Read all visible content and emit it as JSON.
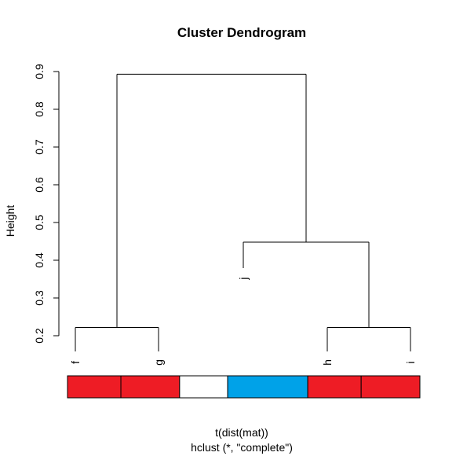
{
  "chart_data": {
    "type": "dendrogram",
    "title": "Cluster Dendrogram",
    "xlabel": "t(dist(mat))",
    "sublabel": "hclust (*, \"complete\")",
    "ylabel": "Height",
    "ylim": [
      0.2,
      0.9
    ],
    "yticks": [
      "0.2",
      "0.3",
      "0.4",
      "0.5",
      "0.6",
      "0.7",
      "0.8",
      "0.9"
    ],
    "leaves": [
      {
        "label": "f",
        "height": 0.2
      },
      {
        "label": "g",
        "height": 0.2
      },
      {
        "label": "j",
        "height": 0.4
      },
      {
        "label": "h",
        "height": 0.2
      },
      {
        "label": "i",
        "height": 0.2
      }
    ],
    "merges": [
      {
        "left": "f",
        "right": "g",
        "height": 0.222
      },
      {
        "left": "h",
        "right": "i",
        "height": 0.222
      },
      {
        "left": "j",
        "right": "h-i",
        "height": 0.448
      },
      {
        "left": "f-g",
        "right": "j-h-i",
        "height": 0.893
      }
    ],
    "color_bar": [
      {
        "width": 1.0,
        "color": "#ee1c25"
      },
      {
        "width": 1.1,
        "color": "#ee1c25"
      },
      {
        "width": 0.9,
        "color": "#ffffff"
      },
      {
        "width": 1.5,
        "color": "#00a2e8"
      },
      {
        "width": 1.0,
        "color": "#ee1c25"
      },
      {
        "width": 1.1,
        "color": "#ee1c25"
      }
    ]
  }
}
